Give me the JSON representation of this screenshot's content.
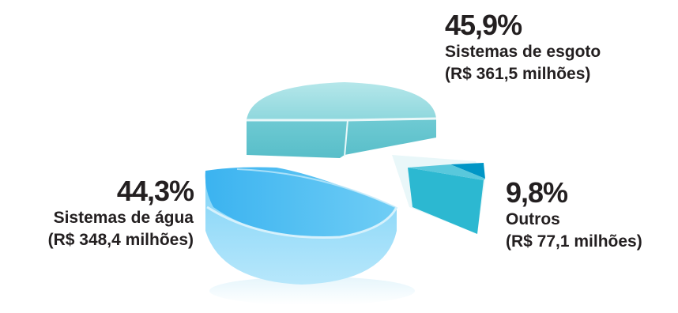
{
  "chart_data": {
    "type": "pie",
    "three_d": true,
    "exploded": true,
    "slices": [
      {
        "label": "Sistemas de esgoto",
        "percent": 45.9,
        "percent_label": "45,9%",
        "amount_label": "(R$ 361,5 milhões)",
        "color": "#7fd3da"
      },
      {
        "label": "Sistemas de água",
        "percent": 44.3,
        "percent_label": "44,3%",
        "amount_label": "(R$ 348,4 milhões)",
        "color": "#4fbff2"
      },
      {
        "label": "Outros",
        "percent": 9.8,
        "percent_label": "9,8%",
        "amount_label": "(R$ 77,1 milhões)",
        "color": "#29b6cf"
      }
    ]
  }
}
